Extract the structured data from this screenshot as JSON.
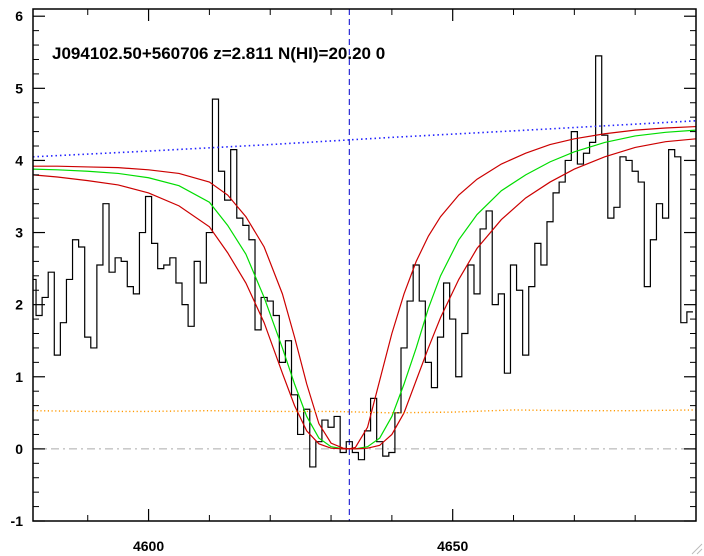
{
  "chart_data": {
    "type": "line",
    "title": "J094102.50+560706 z=2.811 N(HI)=20.20 0",
    "xlabel": "",
    "ylabel": "",
    "xlim": [
      4581,
      4690
    ],
    "ylim": [
      -1,
      6.1
    ],
    "xticks": [
      4600,
      4650
    ],
    "xtick_labels": [
      "4600",
      "4650"
    ],
    "yticks": [
      -1,
      0,
      1,
      2,
      3,
      4,
      5,
      6
    ],
    "ytick_labels": [
      "-1",
      "0",
      "1",
      "2",
      "3",
      "4",
      "5",
      "6"
    ],
    "grid": false,
    "line_center": 4633,
    "zero_level": 0,
    "colors": {
      "spectrum": "#000000",
      "fit_best": "#00dd00",
      "fit_bounds": "#cc0000",
      "continuum": "#2222ff",
      "error": "#ff9900",
      "zero_line": "#aaaaaa",
      "center_line": "#0000cc"
    },
    "series": [
      {
        "name": "",
        "style": "step",
        "x": [
          4581,
          4582,
          4583,
          4584,
          4585,
          4586,
          4587,
          4588,
          4589,
          4590,
          4591,
          4592,
          4593,
          4594,
          4595,
          4596,
          4597,
          4598,
          4599,
          4600,
          4601,
          4602,
          4603,
          4604,
          4605,
          4606,
          4607,
          4608,
          4609,
          4610,
          4611,
          4612,
          4613,
          4614,
          4615,
          4616,
          4617,
          4618,
          4619,
          4620,
          4621,
          4622,
          4623,
          4624,
          4625,
          4626,
          4627,
          4628,
          4629,
          4630,
          4631,
          4632,
          4633,
          4634,
          4635,
          4636,
          4637,
          4638,
          4639,
          4640,
          4641,
          4642,
          4643,
          4644,
          4645,
          4646,
          4647,
          4648,
          4649,
          4650,
          4651,
          4652,
          4653,
          4654,
          4655,
          4656,
          4657,
          4658,
          4659,
          4660,
          4661,
          4662,
          4663,
          4664,
          4665,
          4666,
          4667,
          4668,
          4669,
          4670,
          4671,
          4672,
          4673,
          4674,
          4675,
          4676,
          4677,
          4678,
          4679,
          4680,
          4681,
          4682,
          4683,
          4684,
          4685,
          4686,
          4687,
          4688,
          4689
        ],
        "values": [
          2.35,
          1.85,
          2.1,
          2.45,
          1.3,
          1.75,
          2.35,
          2.9,
          2.8,
          1.55,
          1.4,
          2.55,
          3.4,
          2.45,
          2.65,
          2.6,
          2.25,
          2.15,
          3.0,
          3.5,
          2.85,
          2.5,
          2.55,
          2.65,
          2.3,
          2.0,
          1.7,
          2.6,
          2.3,
          3.0,
          4.85,
          3.85,
          3.45,
          4.15,
          3.2,
          3.1,
          2.9,
          1.65,
          2.1,
          2.05,
          1.85,
          1.2,
          1.5,
          0.75,
          0.2,
          0.55,
          -0.25,
          0.1,
          0.4,
          0.3,
          0.45,
          -0.05,
          0.1,
          -0.05,
          -0.15,
          0.25,
          0.7,
          0.1,
          -0.1,
          -0.05,
          0.5,
          1.4,
          2.05,
          2.55,
          2.05,
          1.2,
          0.85,
          1.55,
          2.3,
          1.8,
          1.0,
          1.6,
          2.55,
          2.15,
          3.05,
          3.3,
          2.0,
          2.15,
          1.05,
          2.55,
          2.2,
          1.3,
          2.25,
          2.85,
          2.55,
          3.15,
          3.55,
          3.7,
          4.0,
          4.4,
          3.95,
          4.1,
          4.25,
          5.45,
          4.35,
          3.2,
          3.35,
          4.05,
          4.0,
          3.85,
          3.7,
          2.25,
          2.9,
          3.4,
          3.2,
          4.15,
          4.05,
          1.75,
          1.9
        ]
      },
      {
        "name": "",
        "style": "solid",
        "x": [
          4581,
          4585,
          4590,
          4595,
          4600,
          4605,
          4610,
          4613,
          4616,
          4619,
          4622,
          4624,
          4626,
          4628,
          4630,
          4632,
          4633,
          4634,
          4636,
          4638,
          4640,
          4642,
          4644,
          4646,
          4648,
          4651,
          4654,
          4658,
          4662,
          4666,
          4670,
          4675,
          4680,
          4685,
          4690
        ],
        "values": [
          3.88,
          3.87,
          3.85,
          3.82,
          3.76,
          3.65,
          3.42,
          3.1,
          2.7,
          2.1,
          1.4,
          0.9,
          0.45,
          0.15,
          0.03,
          0.0,
          0.0,
          0.0,
          0.03,
          0.15,
          0.45,
          0.9,
          1.4,
          1.95,
          2.4,
          2.9,
          3.25,
          3.58,
          3.8,
          3.98,
          4.12,
          4.25,
          4.34,
          4.39,
          4.42
        ]
      },
      {
        "name": "",
        "style": "solid",
        "x": [
          4581,
          4585,
          4590,
          4595,
          4600,
          4605,
          4610,
          4613,
          4616,
          4619,
          4622,
          4624,
          4626,
          4628,
          4630,
          4632,
          4633,
          4634,
          4636,
          4638,
          4640,
          4642,
          4644,
          4646,
          4648,
          4651,
          4654,
          4658,
          4662,
          4666,
          4670,
          4675,
          4680,
          4685,
          4690
        ],
        "values": [
          3.92,
          3.92,
          3.91,
          3.9,
          3.87,
          3.82,
          3.7,
          3.52,
          3.22,
          2.8,
          2.15,
          1.55,
          0.9,
          0.35,
          0.08,
          0.01,
          0.0,
          0.02,
          0.3,
          0.95,
          1.6,
          2.15,
          2.6,
          2.95,
          3.22,
          3.52,
          3.74,
          3.95,
          4.1,
          4.22,
          4.3,
          4.37,
          4.42,
          4.45,
          4.47
        ]
      },
      {
        "name": "",
        "style": "solid",
        "x": [
          4581,
          4585,
          4590,
          4595,
          4600,
          4605,
          4610,
          4613,
          4616,
          4619,
          4622,
          4624,
          4626,
          4628,
          4630,
          4632,
          4633,
          4634,
          4636,
          4638,
          4640,
          4642,
          4644,
          4646,
          4648,
          4651,
          4654,
          4658,
          4662,
          4666,
          4670,
          4675,
          4680,
          4685,
          4690
        ],
        "values": [
          3.8,
          3.77,
          3.72,
          3.66,
          3.55,
          3.37,
          3.08,
          2.72,
          2.3,
          1.75,
          1.05,
          0.6,
          0.25,
          0.07,
          0.01,
          0.0,
          0.0,
          0.0,
          0.01,
          0.05,
          0.2,
          0.5,
          0.95,
          1.4,
          1.82,
          2.35,
          2.78,
          3.18,
          3.48,
          3.7,
          3.88,
          4.05,
          4.18,
          4.26,
          4.3
        ]
      },
      {
        "name": "",
        "style": "dotted",
        "x": [
          4581,
          4600,
          4620,
          4640,
          4660,
          4690
        ],
        "values": [
          4.05,
          4.13,
          4.22,
          4.32,
          4.41,
          4.55
        ]
      },
      {
        "name": "",
        "style": "dotted",
        "x": [
          4581,
          4590,
          4600,
          4610,
          4620,
          4630,
          4640,
          4650,
          4660,
          4670,
          4680,
          4690
        ],
        "values": [
          0.53,
          0.52,
          0.52,
          0.53,
          0.52,
          0.52,
          0.5,
          0.51,
          0.54,
          0.53,
          0.53,
          0.54
        ]
      }
    ]
  }
}
